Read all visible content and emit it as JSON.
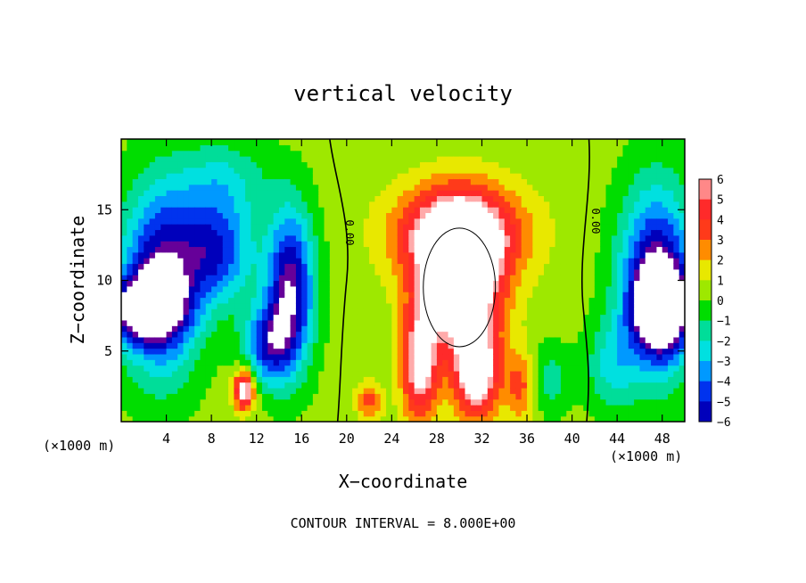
{
  "chart_data": {
    "type": "heatmap",
    "title": "vertical velocity",
    "xlabel": "X−coordinate",
    "ylabel": "Z−coordinate",
    "x_unit_left": "(×1000 m)",
    "x_unit_right": "(×1000 m)",
    "footer": "CONTOUR INTERVAL = 8.000E+00",
    "xlim": [
      0,
      50
    ],
    "ylim": [
      0,
      20
    ],
    "x_ticks": [
      4,
      8,
      12,
      16,
      20,
      24,
      28,
      32,
      36,
      40,
      44,
      48
    ],
    "y_ticks": [
      5,
      10,
      15
    ],
    "colorbar": {
      "levels": [
        6,
        5,
        4,
        3,
        2,
        1,
        0,
        -1,
        -2,
        -3,
        -4,
        -5,
        -6
      ],
      "labels": [
        "6",
        "5",
        "4",
        "3",
        "2",
        "1",
        "0",
        "−1",
        "−2",
        "−3",
        "−4",
        "−5",
        "−6"
      ]
    },
    "contour_labels": [
      "0.00",
      "0.00"
    ],
    "features": [
      {
        "kind": "updraft",
        "x": 30,
        "z": 10,
        "rx": 3.6,
        "rz": 4.6,
        "w": 9
      },
      {
        "kind": "updraft",
        "x": 30,
        "z": 13.5,
        "rx": 5.5,
        "rz": 3.2,
        "w": 6
      },
      {
        "kind": "updraft",
        "x": 26.5,
        "z": 4,
        "rx": 1.6,
        "rz": 4,
        "w": 6
      },
      {
        "kind": "updraft",
        "x": 31.5,
        "z": 3.5,
        "rx": 2,
        "rz": 3.2,
        "w": 7
      },
      {
        "kind": "updraft",
        "x": 10.9,
        "z": 2.3,
        "rx": 0.9,
        "rz": 1.4,
        "w": 7
      },
      {
        "kind": "updraft",
        "x": 35.5,
        "z": 2.5,
        "rx": 1.4,
        "rz": 2.5,
        "w": 3
      },
      {
        "kind": "updraft",
        "x": 22,
        "z": 1.5,
        "rx": 1.2,
        "rz": 1.2,
        "w": 3
      },
      {
        "kind": "downdraft",
        "x": 3.5,
        "z": 10,
        "rx": 3.5,
        "rz": 6.5,
        "w": -7
      },
      {
        "kind": "downdraft",
        "x": 2,
        "z": 8,
        "rx": 3.2,
        "rz": 2.2,
        "w": -7
      },
      {
        "kind": "downdraft",
        "x": 8.5,
        "z": 12,
        "rx": 3.2,
        "rz": 3.5,
        "w": -5
      },
      {
        "kind": "downdraft",
        "x": 15,
        "z": 9.5,
        "rx": 2.1,
        "rz": 5.5,
        "w": -7
      },
      {
        "kind": "downdraft",
        "x": 13,
        "z": 5.5,
        "rx": 2.2,
        "rz": 2.8,
        "w": -5
      },
      {
        "kind": "downdraft",
        "x": 47.5,
        "z": 10,
        "rx": 3.2,
        "rz": 6.5,
        "w": -7
      },
      {
        "kind": "downdraft",
        "x": 48,
        "z": 8,
        "rx": 2.4,
        "rz": 3,
        "w": -7
      },
      {
        "kind": "downdraft",
        "x": 38,
        "z": 3,
        "rx": 1.8,
        "rz": 2.5,
        "w": -2
      },
      {
        "kind": "downdraft",
        "x": 43.5,
        "z": 4,
        "rx": 2.2,
        "rz": 3.2,
        "w": -2.5
      },
      {
        "kind": "downdraft",
        "x": 9,
        "z": 17,
        "rx": 4,
        "rz": 3,
        "w": -2.5
      }
    ]
  }
}
